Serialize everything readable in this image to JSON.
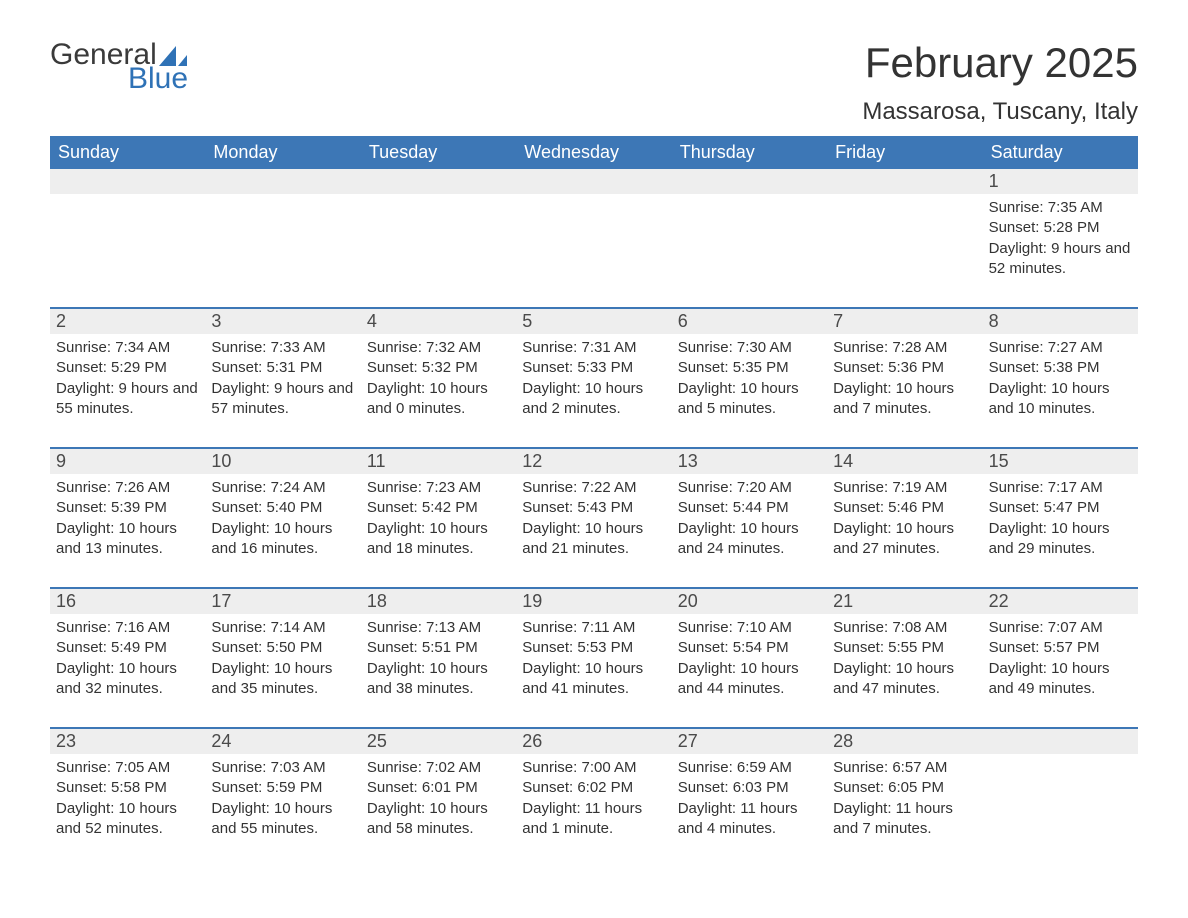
{
  "brand": {
    "word1": "General",
    "word2": "Blue"
  },
  "title": "February 2025",
  "location": "Massarosa, Tuscany, Italy",
  "colors": {
    "header_bg": "#3d77b6",
    "header_text": "#ffffff",
    "row_divider": "#3d77b6",
    "daystrip_bg": "#eeeeee",
    "body_text": "#333333",
    "logo_blue": "#2f72b6",
    "page_bg": "#ffffff"
  },
  "fonts": {
    "family": "Arial, Helvetica, sans-serif",
    "title_size_pt": 32,
    "location_size_pt": 18,
    "dow_size_pt": 14,
    "body_size_pt": 11
  },
  "layout": {
    "columns": 7,
    "rows": 5,
    "start_day_index": 6
  },
  "days_of_week": [
    "Sunday",
    "Monday",
    "Tuesday",
    "Wednesday",
    "Thursday",
    "Friday",
    "Saturday"
  ],
  "weeks": [
    [
      null,
      null,
      null,
      null,
      null,
      null,
      {
        "n": "1",
        "sunrise": "Sunrise: 7:35 AM",
        "sunset": "Sunset: 5:28 PM",
        "daylight": "Daylight: 9 hours and 52 minutes."
      }
    ],
    [
      {
        "n": "2",
        "sunrise": "Sunrise: 7:34 AM",
        "sunset": "Sunset: 5:29 PM",
        "daylight": "Daylight: 9 hours and 55 minutes."
      },
      {
        "n": "3",
        "sunrise": "Sunrise: 7:33 AM",
        "sunset": "Sunset: 5:31 PM",
        "daylight": "Daylight: 9 hours and 57 minutes."
      },
      {
        "n": "4",
        "sunrise": "Sunrise: 7:32 AM",
        "sunset": "Sunset: 5:32 PM",
        "daylight": "Daylight: 10 hours and 0 minutes."
      },
      {
        "n": "5",
        "sunrise": "Sunrise: 7:31 AM",
        "sunset": "Sunset: 5:33 PM",
        "daylight": "Daylight: 10 hours and 2 minutes."
      },
      {
        "n": "6",
        "sunrise": "Sunrise: 7:30 AM",
        "sunset": "Sunset: 5:35 PM",
        "daylight": "Daylight: 10 hours and 5 minutes."
      },
      {
        "n": "7",
        "sunrise": "Sunrise: 7:28 AM",
        "sunset": "Sunset: 5:36 PM",
        "daylight": "Daylight: 10 hours and 7 minutes."
      },
      {
        "n": "8",
        "sunrise": "Sunrise: 7:27 AM",
        "sunset": "Sunset: 5:38 PM",
        "daylight": "Daylight: 10 hours and 10 minutes."
      }
    ],
    [
      {
        "n": "9",
        "sunrise": "Sunrise: 7:26 AM",
        "sunset": "Sunset: 5:39 PM",
        "daylight": "Daylight: 10 hours and 13 minutes."
      },
      {
        "n": "10",
        "sunrise": "Sunrise: 7:24 AM",
        "sunset": "Sunset: 5:40 PM",
        "daylight": "Daylight: 10 hours and 16 minutes."
      },
      {
        "n": "11",
        "sunrise": "Sunrise: 7:23 AM",
        "sunset": "Sunset: 5:42 PM",
        "daylight": "Daylight: 10 hours and 18 minutes."
      },
      {
        "n": "12",
        "sunrise": "Sunrise: 7:22 AM",
        "sunset": "Sunset: 5:43 PM",
        "daylight": "Daylight: 10 hours and 21 minutes."
      },
      {
        "n": "13",
        "sunrise": "Sunrise: 7:20 AM",
        "sunset": "Sunset: 5:44 PM",
        "daylight": "Daylight: 10 hours and 24 minutes."
      },
      {
        "n": "14",
        "sunrise": "Sunrise: 7:19 AM",
        "sunset": "Sunset: 5:46 PM",
        "daylight": "Daylight: 10 hours and 27 minutes."
      },
      {
        "n": "15",
        "sunrise": "Sunrise: 7:17 AM",
        "sunset": "Sunset: 5:47 PM",
        "daylight": "Daylight: 10 hours and 29 minutes."
      }
    ],
    [
      {
        "n": "16",
        "sunrise": "Sunrise: 7:16 AM",
        "sunset": "Sunset: 5:49 PM",
        "daylight": "Daylight: 10 hours and 32 minutes."
      },
      {
        "n": "17",
        "sunrise": "Sunrise: 7:14 AM",
        "sunset": "Sunset: 5:50 PM",
        "daylight": "Daylight: 10 hours and 35 minutes."
      },
      {
        "n": "18",
        "sunrise": "Sunrise: 7:13 AM",
        "sunset": "Sunset: 5:51 PM",
        "daylight": "Daylight: 10 hours and 38 minutes."
      },
      {
        "n": "19",
        "sunrise": "Sunrise: 7:11 AM",
        "sunset": "Sunset: 5:53 PM",
        "daylight": "Daylight: 10 hours and 41 minutes."
      },
      {
        "n": "20",
        "sunrise": "Sunrise: 7:10 AM",
        "sunset": "Sunset: 5:54 PM",
        "daylight": "Daylight: 10 hours and 44 minutes."
      },
      {
        "n": "21",
        "sunrise": "Sunrise: 7:08 AM",
        "sunset": "Sunset: 5:55 PM",
        "daylight": "Daylight: 10 hours and 47 minutes."
      },
      {
        "n": "22",
        "sunrise": "Sunrise: 7:07 AM",
        "sunset": "Sunset: 5:57 PM",
        "daylight": "Daylight: 10 hours and 49 minutes."
      }
    ],
    [
      {
        "n": "23",
        "sunrise": "Sunrise: 7:05 AM",
        "sunset": "Sunset: 5:58 PM",
        "daylight": "Daylight: 10 hours and 52 minutes."
      },
      {
        "n": "24",
        "sunrise": "Sunrise: 7:03 AM",
        "sunset": "Sunset: 5:59 PM",
        "daylight": "Daylight: 10 hours and 55 minutes."
      },
      {
        "n": "25",
        "sunrise": "Sunrise: 7:02 AM",
        "sunset": "Sunset: 6:01 PM",
        "daylight": "Daylight: 10 hours and 58 minutes."
      },
      {
        "n": "26",
        "sunrise": "Sunrise: 7:00 AM",
        "sunset": "Sunset: 6:02 PM",
        "daylight": "Daylight: 11 hours and 1 minute."
      },
      {
        "n": "27",
        "sunrise": "Sunrise: 6:59 AM",
        "sunset": "Sunset: 6:03 PM",
        "daylight": "Daylight: 11 hours and 4 minutes."
      },
      {
        "n": "28",
        "sunrise": "Sunrise: 6:57 AM",
        "sunset": "Sunset: 6:05 PM",
        "daylight": "Daylight: 11 hours and 7 minutes."
      },
      null
    ]
  ]
}
